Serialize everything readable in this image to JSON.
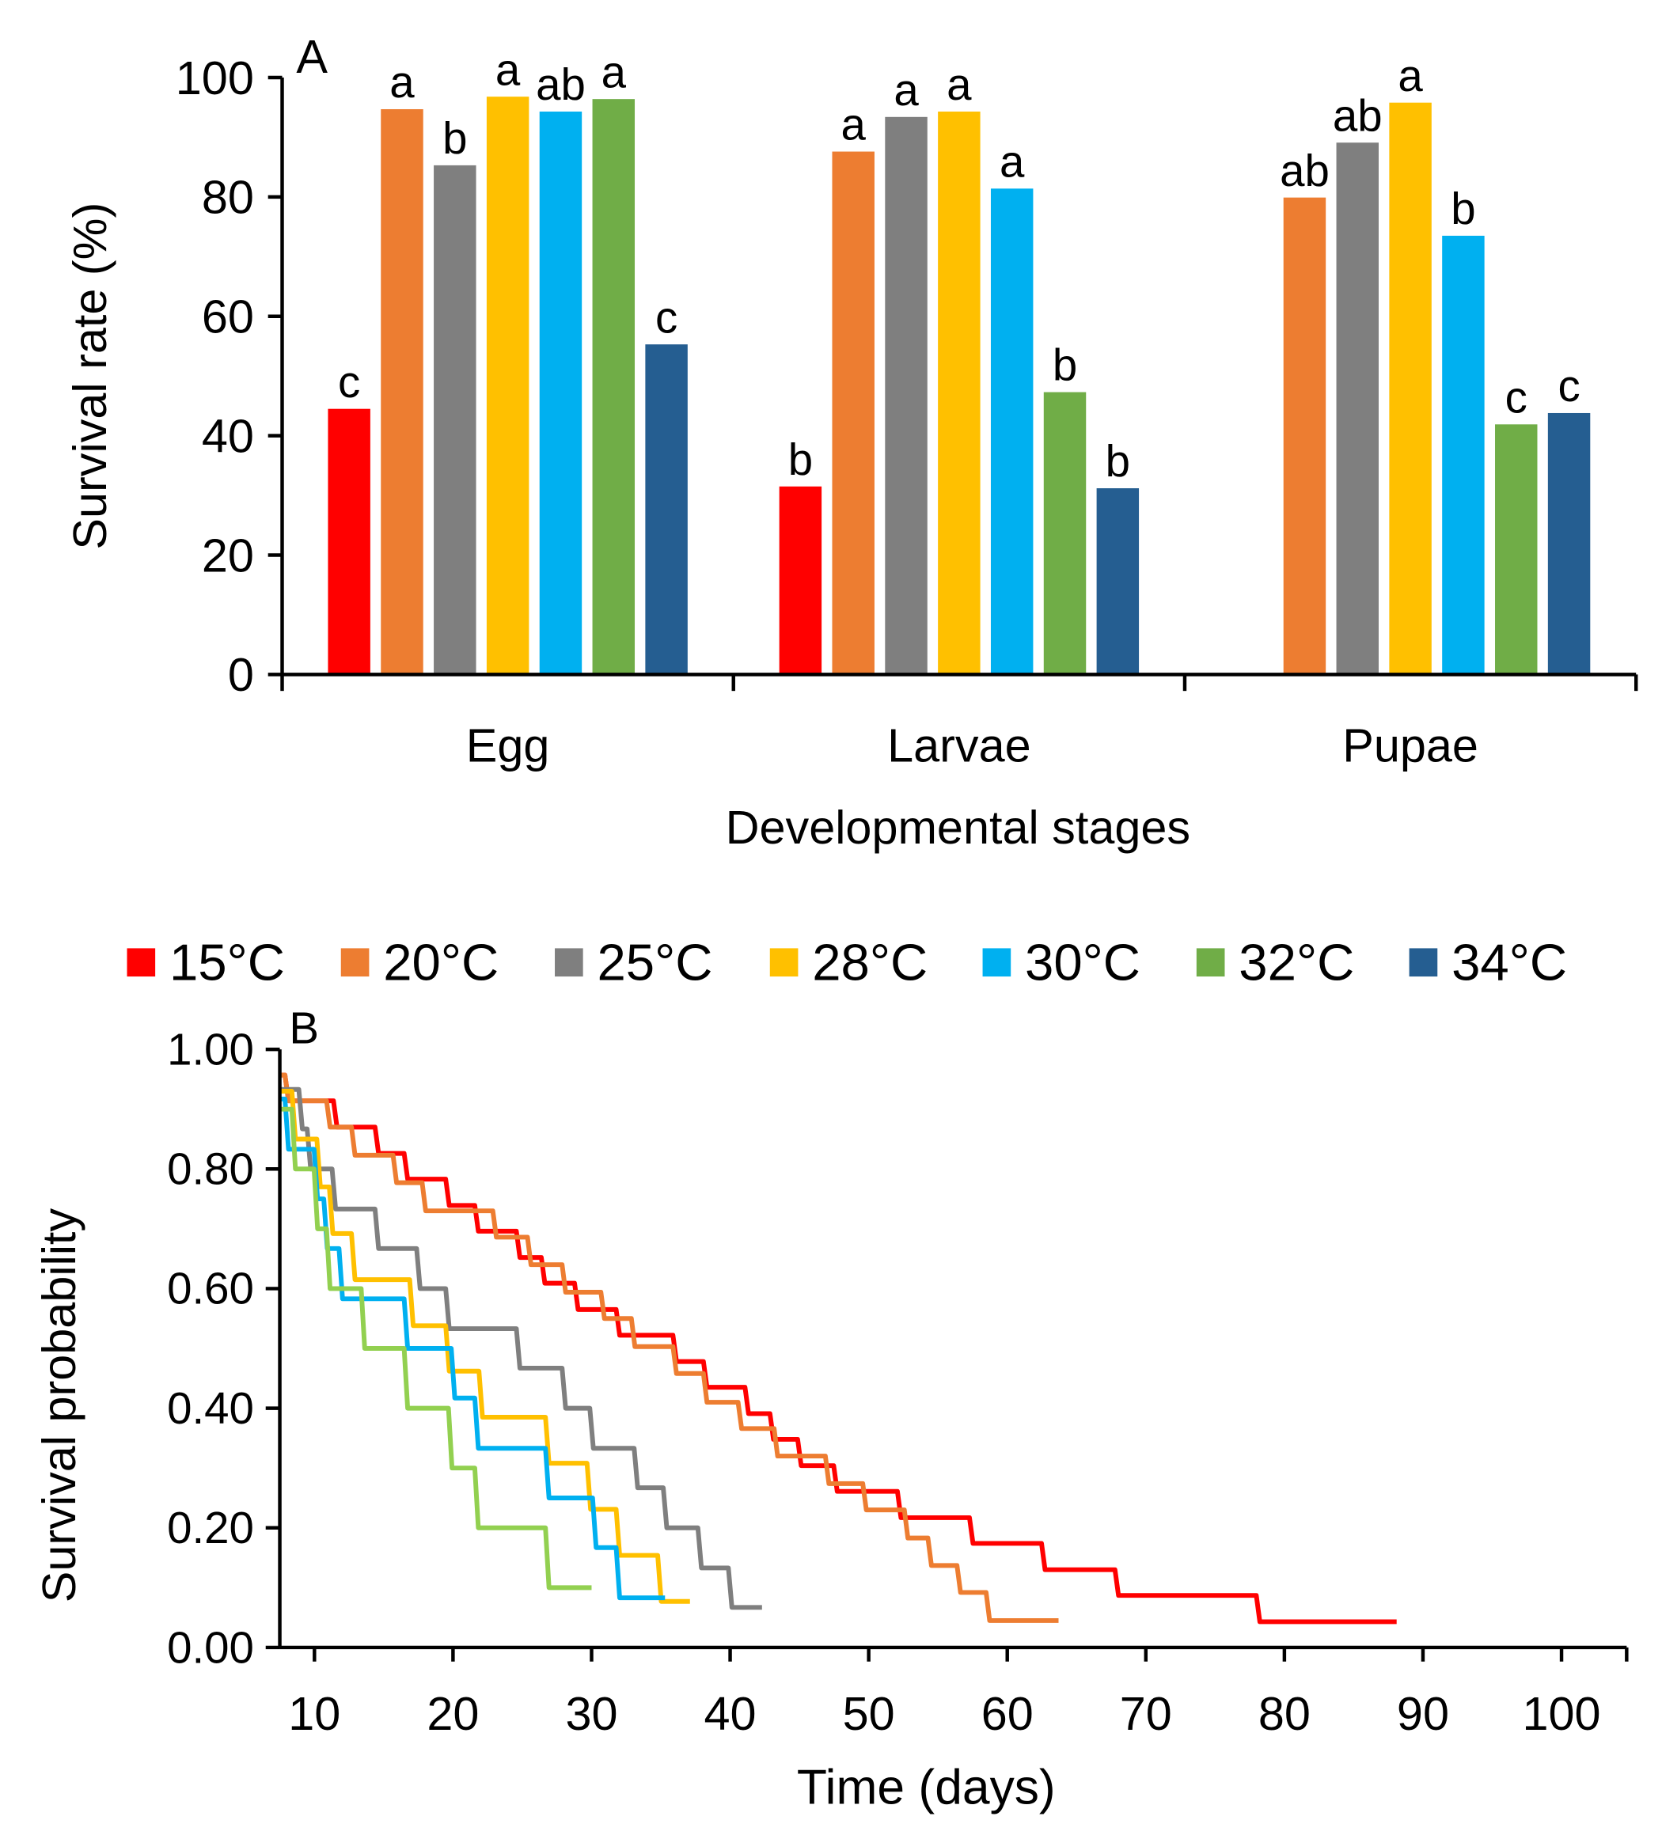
{
  "chart_data": [
    {
      "type": "bar",
      "panel_label": "A",
      "title": "",
      "xlabel": "Developmental stages",
      "ylabel": "Survival rate (%)",
      "ylim": [
        0,
        100
      ],
      "yticks": [
        "0",
        "20",
        "40",
        "60",
        "80",
        "100"
      ],
      "categories": [
        "Egg",
        "Larvae",
        "Pupae"
      ],
      "series": [
        {
          "name": "15°C",
          "color": "#FF0000",
          "values": [
            44.5,
            31.5,
            null
          ],
          "letters": [
            "c",
            "b",
            ""
          ]
        },
        {
          "name": "20°C",
          "color": "#ED7D31",
          "values": [
            94.7,
            87.6,
            79.9
          ],
          "letters": [
            "a",
            "a",
            "ab"
          ]
        },
        {
          "name": "25°C",
          "color": "#7F7F7F",
          "values": [
            85.3,
            93.4,
            89.1
          ],
          "letters": [
            "b",
            "a",
            "ab"
          ]
        },
        {
          "name": "28°C",
          "color": "#FFC000",
          "values": [
            96.8,
            94.3,
            95.8
          ],
          "letters": [
            "a",
            "a",
            "a"
          ]
        },
        {
          "name": "30°C",
          "color": "#00B0F0",
          "values": [
            94.3,
            81.4,
            73.5
          ],
          "letters": [
            "ab",
            "a",
            "b"
          ]
        },
        {
          "name": "32°C",
          "color": "#70AD47",
          "values": [
            96.4,
            47.3,
            41.9
          ],
          "letters": [
            "a",
            "b",
            "c"
          ]
        },
        {
          "name": "34°C",
          "color": "#255E91",
          "values": [
            55.3,
            31.2,
            43.8
          ],
          "letters": [
            "c",
            "b",
            "c"
          ]
        }
      ],
      "legend": "bottom"
    },
    {
      "type": "line",
      "subtype": "step (Kaplan-Meier)",
      "panel_label": "B",
      "xlabel": "Time (days)",
      "ylabel": "Survival probability",
      "xlim": [
        7.5,
        104.7
      ],
      "ylim": [
        0,
        1
      ],
      "xticks": [
        10,
        20,
        30,
        40,
        50,
        60,
        70,
        80,
        90,
        100
      ],
      "yticks": [
        "0.00",
        "0.20",
        "0.40",
        "0.60",
        "0.80",
        "1.00"
      ],
      "legend": "top",
      "series": [
        {
          "name": "15°C",
          "color": "#FF0000",
          "end": 88.1,
          "steps": [
            [
              7.5,
              0.957
            ],
            [
              8,
              0.914
            ],
            [
              11.5,
              0.87
            ],
            [
              14.5,
              0.826
            ],
            [
              16.6,
              0.783
            ],
            [
              19.6,
              0.739
            ],
            [
              21.7,
              0.696
            ],
            [
              24.7,
              0.652
            ],
            [
              26.5,
              0.609
            ],
            [
              28.9,
              0.565
            ],
            [
              31.9,
              0.522
            ],
            [
              36,
              0.478
            ],
            [
              38.2,
              0.435
            ],
            [
              41.2,
              0.391
            ],
            [
              43,
              0.348
            ],
            [
              45,
              0.304
            ],
            [
              47.6,
              0.261
            ],
            [
              52.2,
              0.217
            ],
            [
              57.4,
              0.174
            ],
            [
              62.6,
              0.13
            ],
            [
              67.9,
              0.087
            ],
            [
              78.1,
              0.043
            ]
          ]
        },
        {
          "name": "20°C",
          "color": "#ED7D31",
          "end": 63.7,
          "steps": [
            [
              7.5,
              0.957
            ],
            [
              8,
              0.914
            ],
            [
              11,
              0.87
            ],
            [
              12.8,
              0.823
            ],
            [
              15.8,
              0.777
            ],
            [
              17.9,
              0.73
            ],
            [
              23,
              0.686
            ],
            [
              25.5,
              0.64
            ],
            [
              28,
              0.594
            ],
            [
              30.8,
              0.55
            ],
            [
              33,
              0.503
            ],
            [
              36,
              0.458
            ],
            [
              38.2,
              0.41
            ],
            [
              40.7,
              0.366
            ],
            [
              43.3,
              0.32
            ],
            [
              47,
              0.274
            ],
            [
              49.7,
              0.23
            ],
            [
              52.7,
              0.183
            ],
            [
              54.4,
              0.137
            ],
            [
              56.5,
              0.092
            ],
            [
              58.6,
              0.045
            ]
          ]
        },
        {
          "name": "25°C",
          "color": "#7F7F7F",
          "end": 42.3,
          "steps": [
            [
              7.5,
              0.933
            ],
            [
              9,
              0.867
            ],
            [
              9.6,
              0.8
            ],
            [
              11.4,
              0.733
            ],
            [
              14.5,
              0.667
            ],
            [
              17.5,
              0.6
            ],
            [
              19.6,
              0.533
            ],
            [
              24.7,
              0.467
            ],
            [
              28,
              0.4
            ],
            [
              30,
              0.333
            ],
            [
              33.2,
              0.267
            ],
            [
              35.3,
              0.2
            ],
            [
              37.8,
              0.133
            ],
            [
              40,
              0.067
            ]
          ]
        },
        {
          "name": "28°C",
          "color": "#FFC000",
          "end": 37.1,
          "steps": [
            [
              7.5,
              0.93
            ],
            [
              8.5,
              0.85
            ],
            [
              10.3,
              0.77
            ],
            [
              11.2,
              0.692
            ],
            [
              12.8,
              0.615
            ],
            [
              17,
              0.538
            ],
            [
              19.6,
              0.462
            ],
            [
              22,
              0.385
            ],
            [
              26.8,
              0.308
            ],
            [
              29.8,
              0.231
            ],
            [
              31.9,
              0.154
            ],
            [
              34.9,
              0.077
            ]
          ]
        },
        {
          "name": "30°C",
          "color": "#00B0F0",
          "end": 35.3,
          "steps": [
            [
              7.5,
              0.917
            ],
            [
              8,
              0.833
            ],
            [
              10.1,
              0.75
            ],
            [
              10.8,
              0.667
            ],
            [
              11.9,
              0.583
            ],
            [
              16.6,
              0.5
            ],
            [
              20,
              0.417
            ],
            [
              21.7,
              0.333
            ],
            [
              26.8,
              0.25
            ],
            [
              30.2,
              0.167
            ],
            [
              31.9,
              0.083
            ]
          ]
        },
        {
          "name": "32°C",
          "color": "#92D050",
          "end": 30,
          "steps": [
            [
              7.5,
              0.9
            ],
            [
              8.5,
              0.8
            ],
            [
              10.1,
              0.7
            ],
            [
              11,
              0.6
            ],
            [
              13.5,
              0.5
            ],
            [
              16.6,
              0.4
            ],
            [
              19.8,
              0.3
            ],
            [
              21.7,
              0.2
            ],
            [
              26.8,
              0.1
            ]
          ]
        },
        {
          "name": "34°C",
          "color": "#255E91",
          "legend_only": true
        }
      ]
    }
  ]
}
